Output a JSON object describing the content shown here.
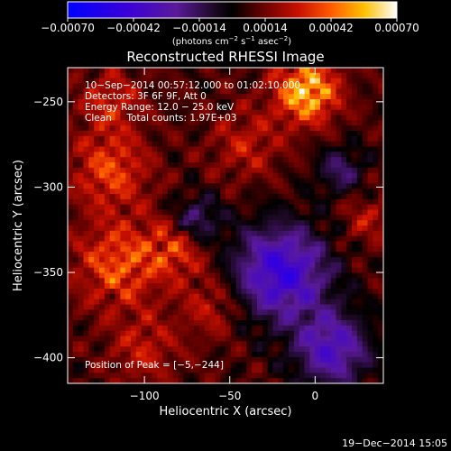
{
  "chart_data": {
    "type": "heatmap",
    "title": "Reconstructed RHESSI Image",
    "xlabel": "Heliocentric X (arcsec)",
    "ylabel": "Heliocentric Y (arcsec)",
    "xlim": [
      -145,
      40
    ],
    "ylim": [
      -415,
      -230
    ],
    "x_ticks": [
      -100,
      -50,
      0
    ],
    "x_tick_labels": [
      "−100",
      "−50",
      "0"
    ],
    "y_ticks": [
      -400,
      -350,
      -300,
      -250
    ],
    "y_tick_labels": [
      "−400",
      "−350",
      "−300",
      "−250"
    ],
    "colorbar": {
      "colormap": "blue-purple-black-red-yellow-white",
      "range": [
        -0.0007,
        0.0007
      ],
      "tick_values": [
        -0.0007,
        -0.00042,
        -0.00014,
        0.00014,
        0.00042,
        0.0007
      ],
      "tick_labels": [
        "−0.00070",
        "−0.00042",
        "−0.00014",
        "0.00014",
        "0.00042",
        "0.00070"
      ],
      "unit_parts": [
        "(photons cm",
        "−2",
        " s",
        "−1",
        " asec",
        "−2",
        ")"
      ]
    },
    "info_lines": [
      "10−Sep−2014 00:57:12.000 to 01:02:10.000",
      "Detectors: 3F 6F 9F, Att 0",
      "Energy Range: 12.0 − 25.0 keV",
      "Clean     Total counts: 1.97E+03"
    ],
    "peak_label": "Position of Peak = [−5,−244]",
    "peak_position": [
      -5,
      -244
    ],
    "grid": false
  },
  "footer": {
    "timestamp": "19−Dec−2014 15:05"
  },
  "colors": {
    "background": "#000000",
    "foreground": "#ffffff"
  }
}
